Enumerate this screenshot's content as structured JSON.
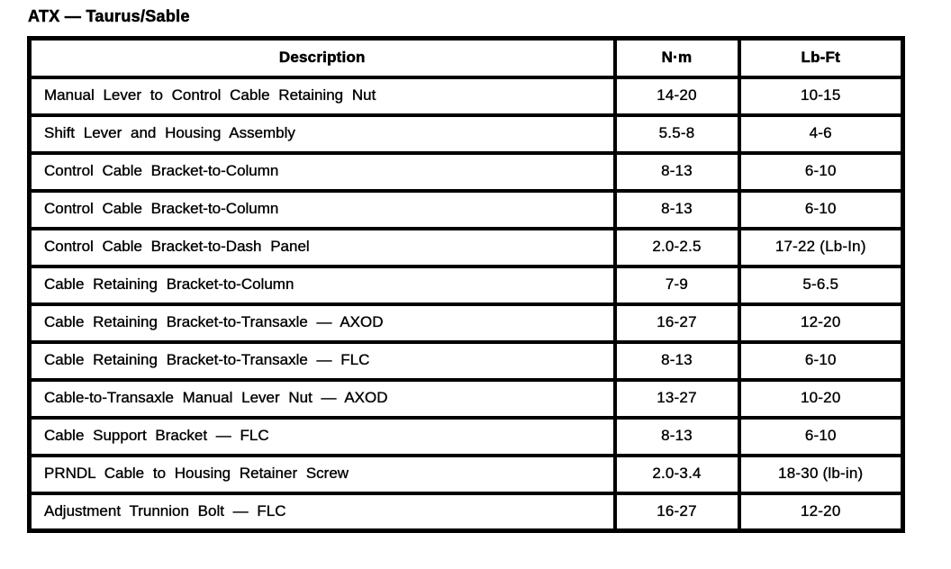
{
  "title": "ATX — Taurus/Sable",
  "table": {
    "columns": {
      "description": "Description",
      "nm": "N·m",
      "lbft": "Lb-Ft"
    },
    "rows": [
      {
        "description": "Manual Lever to Control Cable Retaining Nut",
        "nm": "14-20",
        "lbft": "10-15"
      },
      {
        "description": "Shift Lever and Housing Assembly",
        "nm": "5.5-8",
        "lbft": "4-6"
      },
      {
        "description": "Control Cable Bracket-to-Column",
        "nm": "8-13",
        "lbft": "6-10"
      },
      {
        "description": "Control Cable Bracket-to-Column",
        "nm": "8-13",
        "lbft": "6-10"
      },
      {
        "description": "Control Cable Bracket-to-Dash Panel",
        "nm": "2.0-2.5",
        "lbft": "17-22 (Lb-In)"
      },
      {
        "description": "Cable Retaining Bracket-to-Column",
        "nm": "7-9",
        "lbft": "5-6.5"
      },
      {
        "description": "Cable Retaining Bracket-to-Transaxle — AXOD",
        "nm": "16-27",
        "lbft": "12-20"
      },
      {
        "description": "Cable Retaining Bracket-to-Transaxle — FLC",
        "nm": "8-13",
        "lbft": "6-10"
      },
      {
        "description": "Cable-to-Transaxle Manual Lever Nut — AXOD",
        "nm": "13-27",
        "lbft": "10-20"
      },
      {
        "description": "Cable Support Bracket — FLC",
        "nm": "8-13",
        "lbft": "6-10"
      },
      {
        "description": "PRNDL Cable to Housing Retainer Screw",
        "nm": "2.0-3.4",
        "lbft": "18-30 (lb-in)"
      },
      {
        "description": "Adjustment Trunnion Bolt — FLC",
        "nm": "16-27",
        "lbft": "12-20"
      }
    ]
  }
}
